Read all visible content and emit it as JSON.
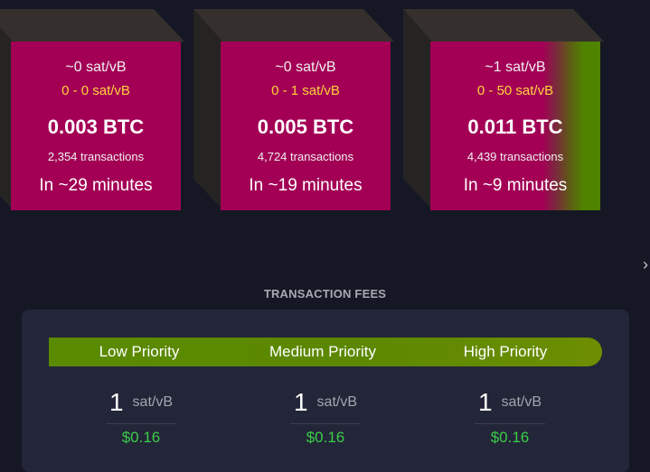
{
  "blocks": [
    {
      "fee_median": "~0 sat/vB",
      "fee_range": "0 - 0 sat/vB",
      "size": "0.003 BTC",
      "tx_count": "2,354 transactions",
      "eta": "In ~29 minutes"
    },
    {
      "fee_median": "~0 sat/vB",
      "fee_range": "0 - 1 sat/vB",
      "size": "0.005 BTC",
      "tx_count": "4,724 transactions",
      "eta": "In ~19 minutes"
    },
    {
      "fee_median": "~1 sat/vB",
      "fee_range": "0 - 50 sat/vB",
      "size": "0.011 BTC",
      "tx_count": "4,439 transactions",
      "eta": "In ~9 minutes"
    }
  ],
  "nav": {
    "arrow_icon": "chevron-right-icon",
    "arrow_glyph": "›"
  },
  "fees": {
    "title": "TRANSACTION FEES",
    "priorities": [
      {
        "label": "Low Priority",
        "value": "1",
        "unit": "sat/vB",
        "usd": "$0.16"
      },
      {
        "label": "Medium Priority",
        "value": "1",
        "unit": "sat/vB",
        "usd": "$0.16"
      },
      {
        "label": "High Priority",
        "value": "1",
        "unit": "sat/vB",
        "usd": "$0.16"
      }
    ]
  },
  "colors": {
    "background": "#151824",
    "block_face": "#a30055",
    "block_face_green": "#4e8400",
    "fee_range": "#ffd33c",
    "priority_bar": "#5a8a00",
    "usd": "#3bcc49",
    "card": "#232638"
  }
}
